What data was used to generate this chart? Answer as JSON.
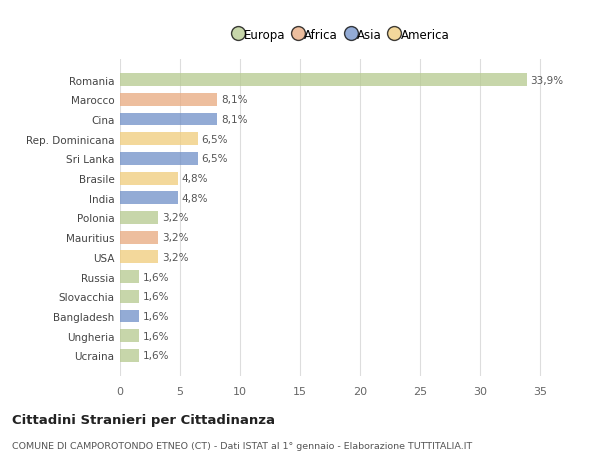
{
  "categories": [
    "Romania",
    "Marocco",
    "Cina",
    "Rep. Dominicana",
    "Sri Lanka",
    "Brasile",
    "India",
    "Polonia",
    "Mauritius",
    "USA",
    "Russia",
    "Slovacchia",
    "Bangladesh",
    "Ungheria",
    "Ucraina"
  ],
  "values": [
    33.9,
    8.1,
    8.1,
    6.5,
    6.5,
    4.8,
    4.8,
    3.2,
    3.2,
    3.2,
    1.6,
    1.6,
    1.6,
    1.6,
    1.6
  ],
  "labels": [
    "33,9%",
    "8,1%",
    "8,1%",
    "6,5%",
    "6,5%",
    "4,8%",
    "4,8%",
    "3,2%",
    "3,2%",
    "3,2%",
    "1,6%",
    "1,6%",
    "1,6%",
    "1,6%",
    "1,6%"
  ],
  "continents": [
    "Europa",
    "Africa",
    "Asia",
    "America",
    "Asia",
    "America",
    "Asia",
    "Europa",
    "Africa",
    "America",
    "Europa",
    "Europa",
    "Asia",
    "Europa",
    "Europa"
  ],
  "colors": {
    "Europa": "#b5c98e",
    "Africa": "#e8a97e",
    "Asia": "#6f8fc7",
    "America": "#f0cc7a"
  },
  "legend_order": [
    "Europa",
    "Africa",
    "Asia",
    "America"
  ],
  "title": "Cittadini Stranieri per Cittadinanza",
  "subtitle": "COMUNE DI CAMPOROTONDO ETNEO (CT) - Dati ISTAT al 1° gennaio - Elaborazione TUTTITALIA.IT",
  "xlim": [
    0,
    37
  ],
  "xticks": [
    0,
    5,
    10,
    15,
    20,
    25,
    30,
    35
  ],
  "background_color": "#ffffff",
  "grid_color": "#dddddd",
  "bar_alpha": 0.75
}
